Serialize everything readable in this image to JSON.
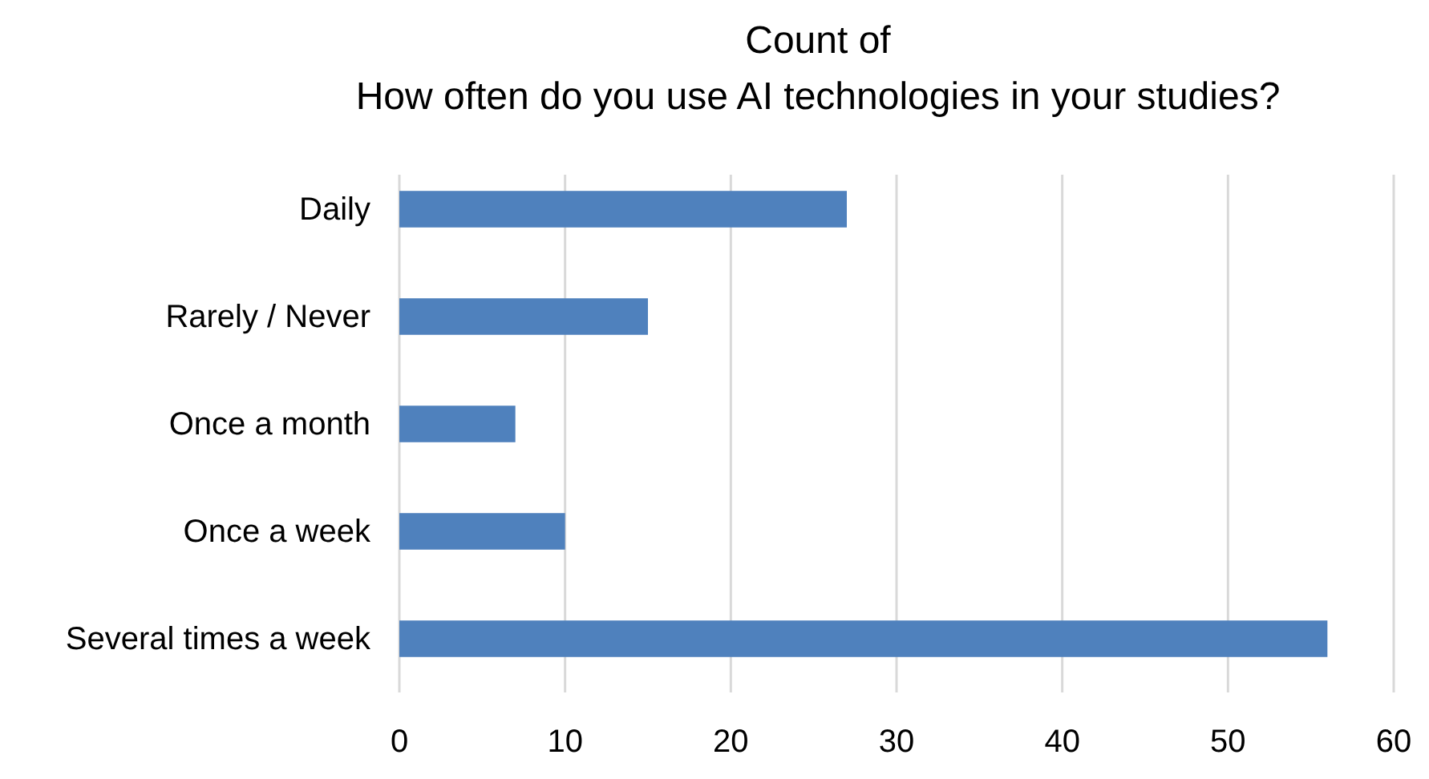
{
  "chart_data": {
    "type": "bar",
    "orientation": "horizontal",
    "title": "Count of\nHow often do you use AI technologies in your studies?",
    "categories": [
      "Daily",
      "Rarely / Never",
      "Once a month",
      "Once a week",
      "Several times a week"
    ],
    "values": [
      27,
      15,
      7,
      10,
      56
    ],
    "color": "#4f81bd",
    "xlim": [
      0,
      60
    ],
    "xticks": [
      0,
      10,
      20,
      30,
      40,
      50,
      60
    ],
    "grid": "x"
  }
}
